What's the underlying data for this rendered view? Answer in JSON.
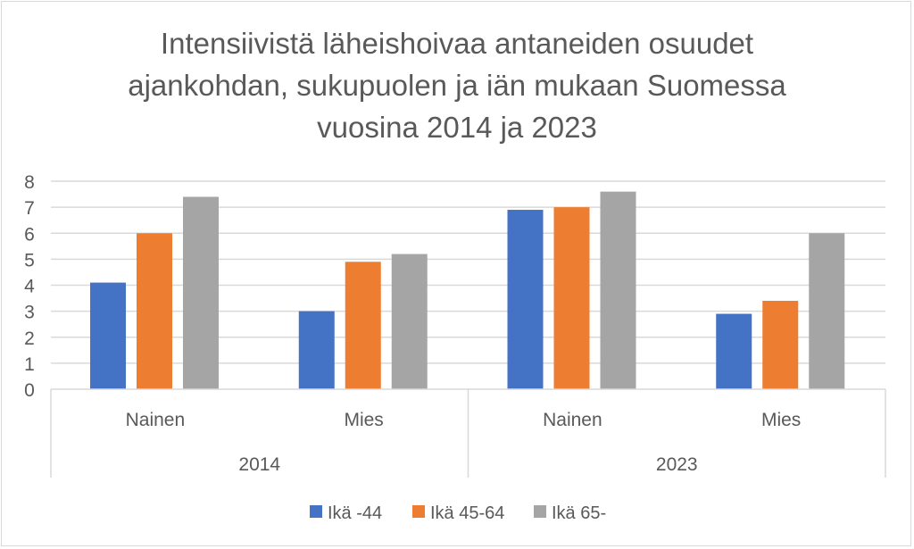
{
  "chart_data": {
    "type": "bar",
    "title_lines": [
      "Intensiivistä läheishoivaa antaneiden osuudet",
      "ajankohdan, sukupuolen ja iän mukaan Suomessa",
      "vuosina 2014 ja 2023"
    ],
    "groups": [
      {
        "label": "2014",
        "categories": [
          "Nainen",
          "Mies"
        ]
      },
      {
        "label": "2023",
        "categories": [
          "Nainen",
          "Mies"
        ]
      }
    ],
    "series": [
      {
        "name": "Ikä -44",
        "color": "#4472c4",
        "values": [
          4.1,
          3.0,
          6.9,
          2.9
        ]
      },
      {
        "name": "Ikä 45-64",
        "color": "#ed7d31",
        "values": [
          6.0,
          4.9,
          7.0,
          3.4
        ]
      },
      {
        "name": "Ikä 65-",
        "color": "#a5a5a5",
        "values": [
          7.4,
          5.2,
          7.6,
          6.0
        ]
      }
    ],
    "ylim": [
      0,
      8
    ],
    "yticks": [
      0,
      1,
      2,
      3,
      4,
      5,
      6,
      7,
      8
    ],
    "grid": true,
    "legend_position": "bottom"
  }
}
